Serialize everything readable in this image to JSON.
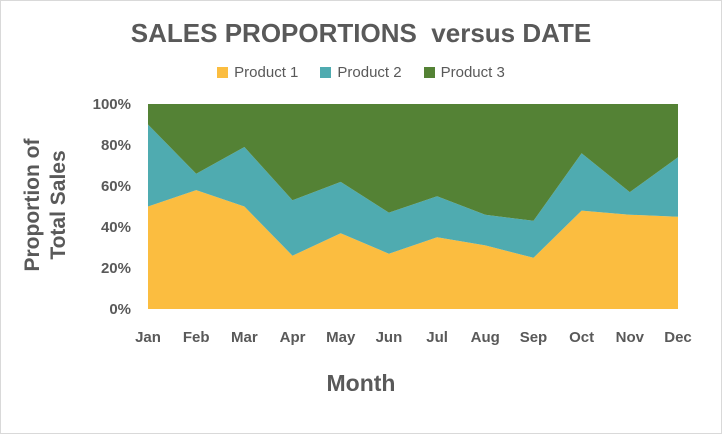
{
  "chart_data": {
    "type": "area",
    "stacked": true,
    "title": "SALES PROPORTIONS  versus DATE",
    "xlabel": "Month",
    "ylabel": [
      "Proportion of",
      "Total Sales"
    ],
    "categories": [
      "Jan",
      "Feb",
      "Mar",
      "Apr",
      "May",
      "Jun",
      "Jul",
      "Aug",
      "Sep",
      "Oct",
      "Nov",
      "Dec"
    ],
    "ylim": [
      0,
      1
    ],
    "yticks": [
      "0%",
      "20%",
      "40%",
      "60%",
      "80%",
      "100%"
    ],
    "legend_position": "top",
    "grid": false,
    "series": [
      {
        "name": "Product 1",
        "color": "#fbbd40",
        "values": [
          0.5,
          0.58,
          0.5,
          0.26,
          0.37,
          0.27,
          0.35,
          0.31,
          0.25,
          0.48,
          0.46,
          0.45
        ]
      },
      {
        "name": "Product 2",
        "color": "#4fabb0",
        "values": [
          0.4,
          0.08,
          0.29,
          0.27,
          0.25,
          0.2,
          0.2,
          0.15,
          0.18,
          0.28,
          0.11,
          0.29
        ]
      },
      {
        "name": "Product 3",
        "color": "#548235",
        "values": [
          0.1,
          0.34,
          0.21,
          0.47,
          0.38,
          0.53,
          0.45,
          0.54,
          0.57,
          0.24,
          0.43,
          0.26
        ]
      }
    ]
  }
}
